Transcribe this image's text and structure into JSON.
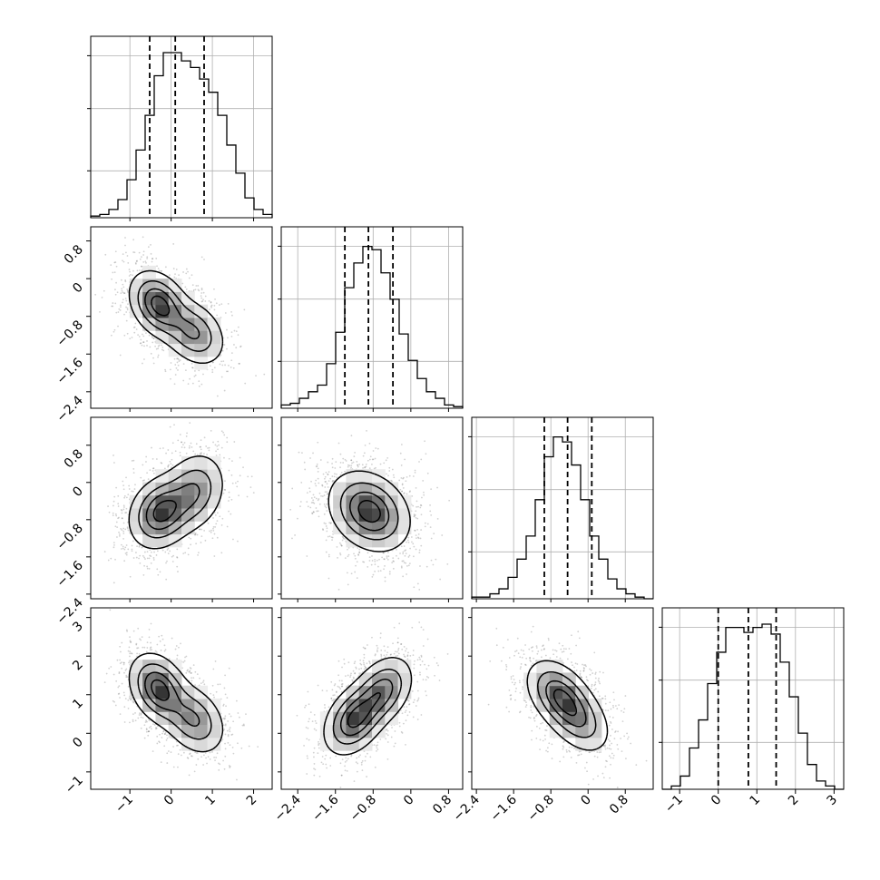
{
  "chart_data": {
    "type": "corner",
    "parameters": [
      {
        "index": 0,
        "range": [
          -1.95,
          2.45
        ],
        "ticks": [
          -1,
          0,
          1,
          2
        ],
        "quantiles": [
          -0.52,
          0.1,
          0.8
        ]
      },
      {
        "index": 1,
        "range": [
          -2.75,
          1.1
        ],
        "ticks": [
          -2.4,
          -1.6,
          -0.8,
          0.0,
          0.8
        ],
        "quantiles": [
          -1.4,
          -0.9,
          -0.38
        ]
      },
      {
        "index": 2,
        "range": [
          -2.5,
          1.4
        ],
        "ticks": [
          -2.4,
          -1.6,
          -0.8,
          0.0,
          0.8
        ],
        "quantiles": [
          -0.94,
          -0.44,
          0.08
        ]
      },
      {
        "index": 3,
        "range": [
          -1.45,
          3.25
        ],
        "ticks": [
          -1,
          0,
          1,
          2,
          3
        ],
        "quantiles": [
          0.0,
          0.78,
          1.5
        ]
      }
    ],
    "histograms": [
      {
        "dim": 0,
        "edges_start": -1.95,
        "bin_width": 0.22,
        "counts": [
          0.01,
          0.02,
          0.05,
          0.11,
          0.23,
          0.41,
          0.62,
          0.86,
          1.0,
          1.0,
          0.95,
          0.91,
          0.84,
          0.76,
          0.62,
          0.44,
          0.27,
          0.12,
          0.05,
          0.02
        ]
      },
      {
        "dim": 1,
        "edges_start": -2.75,
        "bin_width": 0.1925,
        "counts": [
          0.02,
          0.03,
          0.06,
          0.1,
          0.14,
          0.27,
          0.46,
          0.73,
          0.88,
          0.98,
          0.96,
          0.82,
          0.66,
          0.45,
          0.29,
          0.18,
          0.1,
          0.06,
          0.02,
          0.01
        ]
      },
      {
        "dim": 2,
        "edges_start": -2.5,
        "bin_width": 0.195,
        "counts": [
          0.01,
          0.01,
          0.03,
          0.06,
          0.13,
          0.24,
          0.38,
          0.6,
          0.86,
          0.98,
          0.95,
          0.81,
          0.6,
          0.38,
          0.24,
          0.12,
          0.06,
          0.03,
          0.01,
          0.0
        ]
      },
      {
        "dim": 3,
        "edges_start": -1.45,
        "bin_width": 0.235,
        "counts": [
          0.0,
          0.02,
          0.08,
          0.25,
          0.42,
          0.64,
          0.83,
          0.98,
          0.98,
          0.95,
          0.98,
          1.0,
          0.94,
          0.77,
          0.56,
          0.34,
          0.15,
          0.05,
          0.02,
          0.0
        ]
      }
    ],
    "pairs": [
      {
        "x": 0,
        "y": 1,
        "components": [
          {
            "weight": 0.6,
            "mean": [
              -0.3,
              -0.55
            ],
            "sd": [
              0.35,
              0.35
            ],
            "rho": -0.3
          },
          {
            "weight": 0.4,
            "mean": [
              0.55,
              -1.15
            ],
            "sd": [
              0.38,
              0.35
            ],
            "rho": -0.3
          }
        ]
      },
      {
        "x": 0,
        "y": 2,
        "components": [
          {
            "weight": 0.6,
            "mean": [
              -0.25,
              -0.65
            ],
            "sd": [
              0.38,
              0.38
            ],
            "rho": 0.2
          },
          {
            "weight": 0.4,
            "mean": [
              0.55,
              -0.2
            ],
            "sd": [
              0.38,
              0.42
            ],
            "rho": 0.2
          }
        ]
      },
      {
        "x": 0,
        "y": 3,
        "components": [
          {
            "weight": 0.6,
            "mean": [
              -0.3,
              1.15
            ],
            "sd": [
              0.35,
              0.45
            ],
            "rho": -0.3
          },
          {
            "weight": 0.4,
            "mean": [
              0.55,
              0.35
            ],
            "sd": [
              0.38,
              0.45
            ],
            "rho": -0.3
          }
        ]
      },
      {
        "x": 1,
        "y": 2,
        "components": [
          {
            "weight": 1.0,
            "mean": [
              -0.88,
              -0.62
            ],
            "sd": [
              0.42,
              0.42
            ],
            "rho": -0.25
          }
        ]
      },
      {
        "x": 1,
        "y": 3,
        "components": [
          {
            "weight": 0.55,
            "mean": [
              -1.2,
              0.35
            ],
            "sd": [
              0.32,
              0.45
            ],
            "rho": 0.35
          },
          {
            "weight": 0.45,
            "mean": [
              -0.6,
              1.1
            ],
            "sd": [
              0.32,
              0.45
            ],
            "rho": 0.35
          }
        ]
      },
      {
        "x": 2,
        "y": 3,
        "components": [
          {
            "weight": 0.6,
            "mean": [
              -0.62,
              1.0
            ],
            "sd": [
              0.35,
              0.45
            ],
            "rho": -0.4
          },
          {
            "weight": 0.4,
            "mean": [
              -0.2,
              0.35
            ],
            "sd": [
              0.35,
              0.45
            ],
            "rho": -0.4
          }
        ]
      }
    ],
    "contour_levels": [
      0.12,
      0.35,
      0.62,
      0.86
    ],
    "grid": true,
    "quantile_line_style": "dashed"
  }
}
